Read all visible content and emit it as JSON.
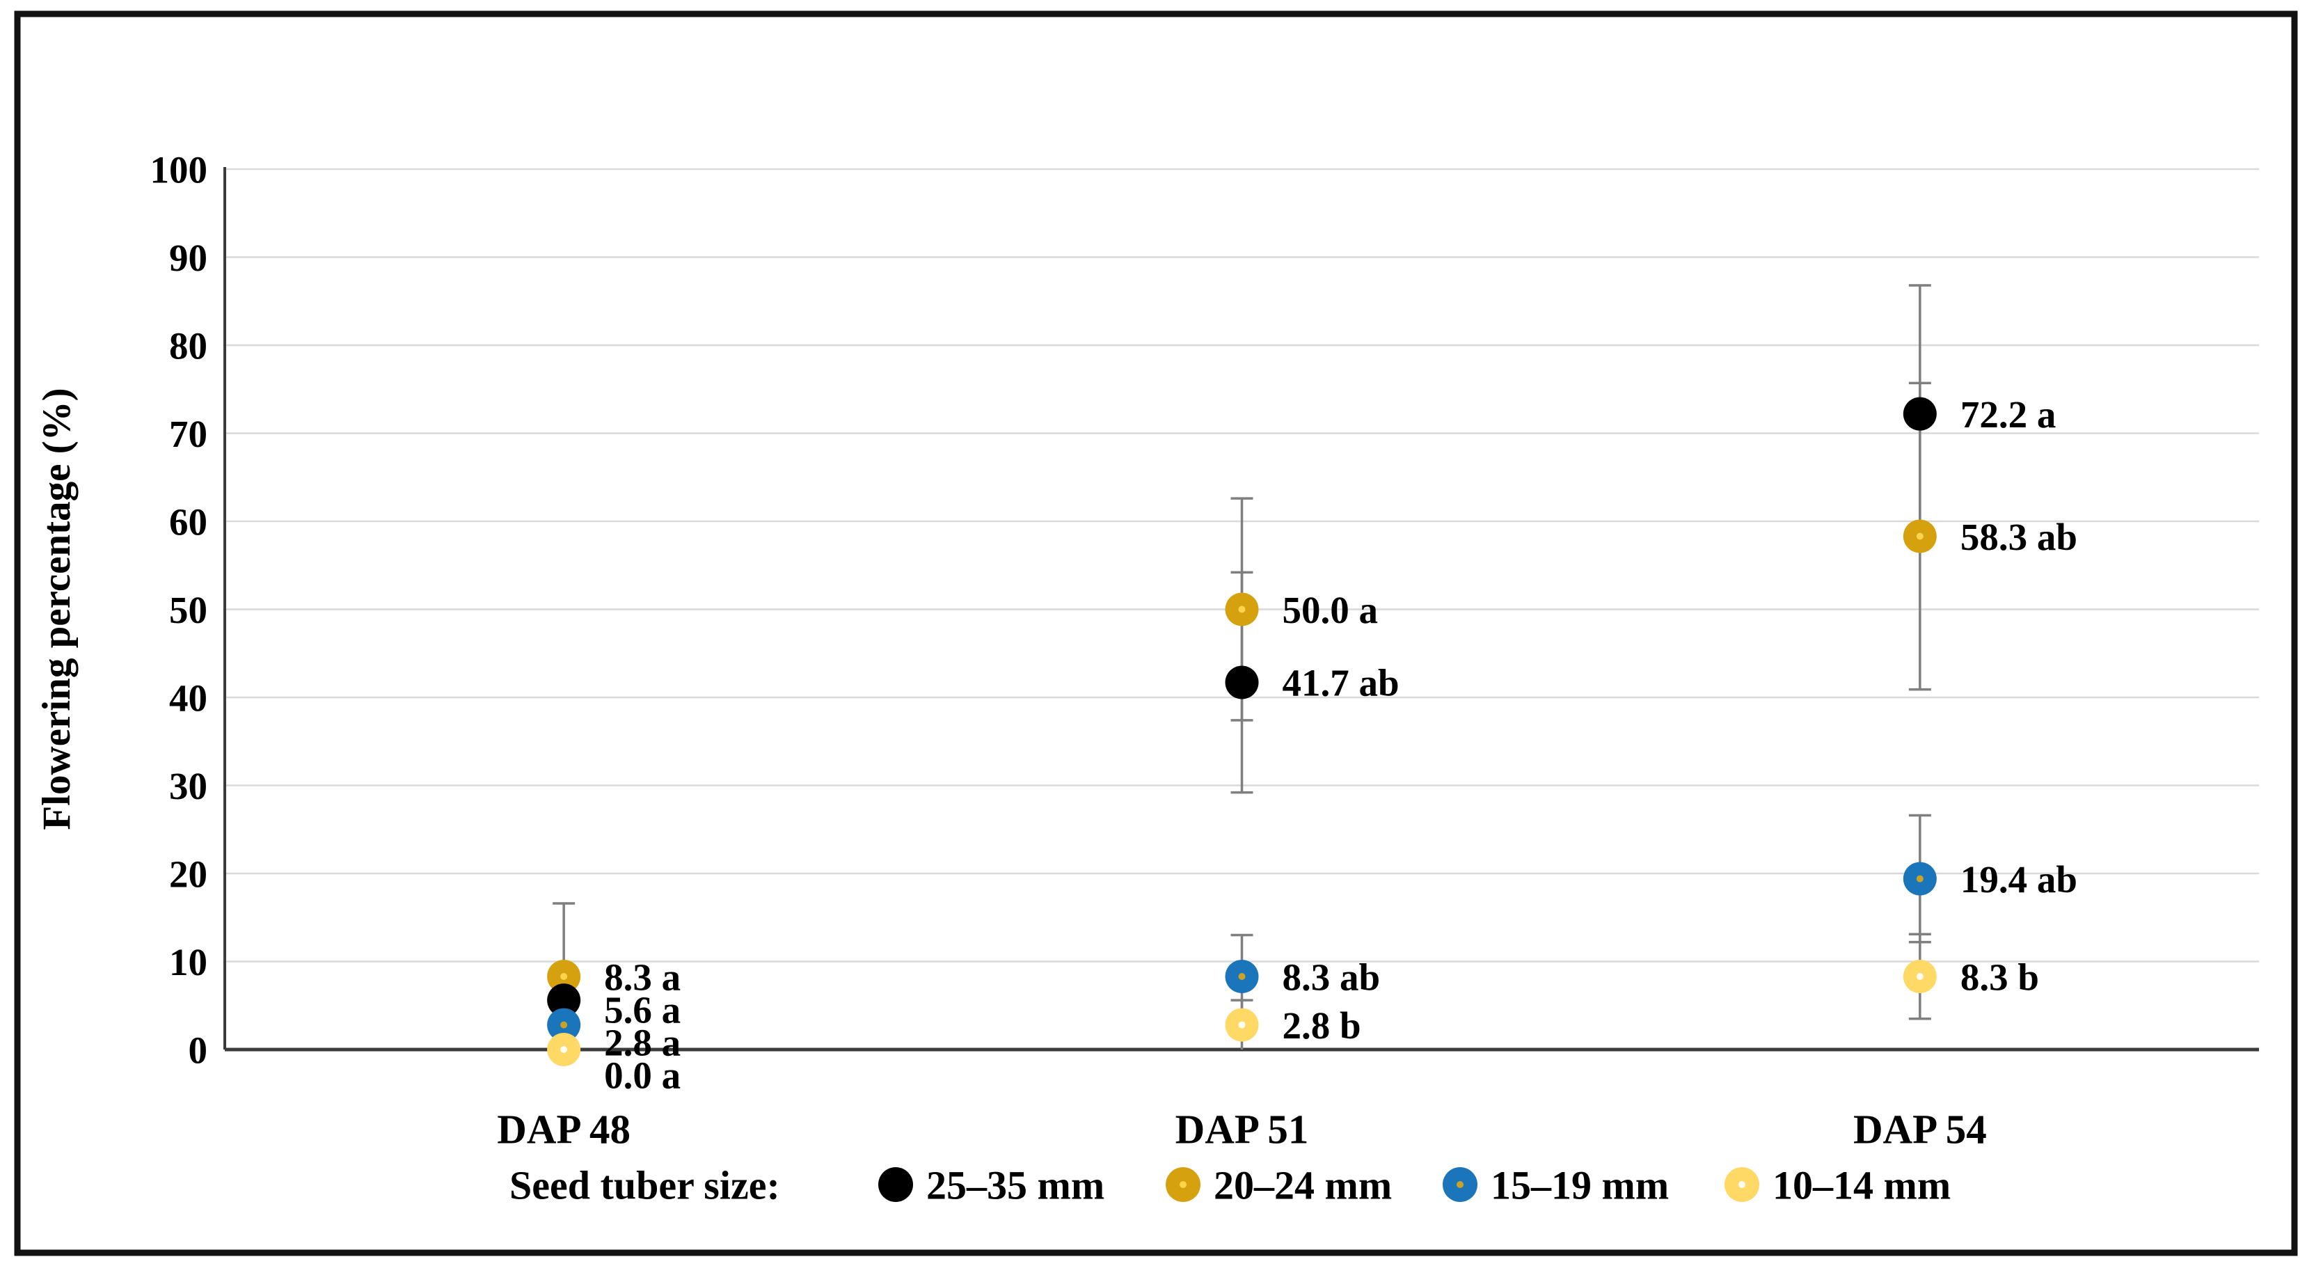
{
  "chart_data": {
    "type": "scatter",
    "title": "",
    "ylabel": "Flowering percentage (%)",
    "xlabel": "",
    "ylim": [
      0,
      100
    ],
    "ytick_step": 10,
    "yticks": [
      0,
      10,
      20,
      30,
      40,
      50,
      60,
      70,
      80,
      90,
      100
    ],
    "categories": [
      "DAP 48",
      "DAP 51",
      "DAP 54"
    ],
    "grid": true,
    "legend_position": "bottom",
    "legend_title": "Seed tuber size:",
    "series": [
      {
        "name": "25–35 mm",
        "color": "#000000",
        "dot_color": null,
        "values": [
          5.6,
          41.7,
          72.2
        ],
        "err_lo": [
          5.6,
          29.2,
          57.6
        ],
        "err_hi": [
          5.6,
          54.2,
          86.8
        ],
        "labels": [
          "5.6 a",
          "41.7 ab",
          "72.2 a"
        ]
      },
      {
        "name": "20–24 mm",
        "color": "#D6A10E",
        "dot_color": "#FFD34D",
        "values": [
          8.3,
          50.0,
          58.3
        ],
        "err_lo": [
          0.0,
          37.4,
          40.9
        ],
        "err_hi": [
          16.6,
          62.6,
          75.7
        ],
        "labels": [
          "8.3 a",
          "50.0 a",
          "58.3 ab"
        ]
      },
      {
        "name": "15–19 mm",
        "color": "#1B75BB",
        "dot_color": "#C9A227",
        "values": [
          2.8,
          8.3,
          19.4
        ],
        "err_lo": [
          2.8,
          3.6,
          12.2
        ],
        "err_hi": [
          2.8,
          13.0,
          26.6
        ],
        "labels": [
          "2.8 a",
          "8.3 ab",
          "19.4 ab"
        ]
      },
      {
        "name": "10–14 mm",
        "color": "#FFD966",
        "dot_color": "#FFFDF2",
        "values": [
          0.0,
          2.8,
          8.3
        ],
        "err_lo": [
          0.0,
          0.0,
          3.5
        ],
        "err_hi": [
          0.0,
          5.6,
          13.1
        ],
        "labels": [
          "0.0 a",
          "2.8 b",
          "8.3 b"
        ]
      }
    ],
    "colors": {
      "error_bar": "#7F7F7F",
      "gridline": "#D9D9D9",
      "axis": "#3B3B3B",
      "frame": "#121212",
      "text": "#000000"
    }
  }
}
